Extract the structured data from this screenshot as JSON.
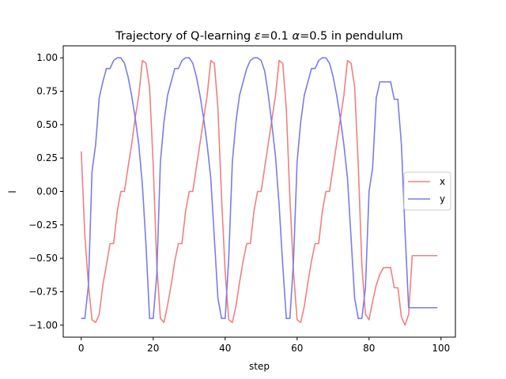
{
  "chart_data": {
    "type": "line",
    "title": "Trajectory of Q-learning ε=0.1 α=0.5 in pendulum",
    "title_parts": {
      "prefix": "Trajectory of Q-learning ",
      "eps_symbol": "ε",
      "eps_value": "=0.1 ",
      "alpha_symbol": "α",
      "alpha_value": "=0.5 in pendulum"
    },
    "xlabel": "step",
    "ylabel": "l",
    "xlim": [
      -5,
      104
    ],
    "ylim": [
      -1.09,
      1.09
    ],
    "xticks": [
      0,
      20,
      40,
      60,
      80,
      100
    ],
    "xtick_labels": [
      "0",
      "20",
      "40",
      "60",
      "80",
      "100"
    ],
    "yticks": [
      1.0,
      0.75,
      0.5,
      0.25,
      0.0,
      -0.25,
      -0.5,
      -0.75,
      -1.0
    ],
    "ytick_labels": [
      "1.00",
      "0.75",
      "0.50",
      "0.25",
      "0.00",
      "−0.25",
      "−0.50",
      "−0.75",
      "−1.00"
    ],
    "grid": false,
    "legend_position": "right",
    "x": [
      0,
      1,
      2,
      3,
      4,
      5,
      6,
      7,
      8,
      9,
      10,
      11,
      12,
      13,
      14,
      15,
      16,
      17,
      18,
      19,
      20,
      21,
      22,
      23,
      24,
      25,
      26,
      27,
      28,
      29,
      30,
      31,
      32,
      33,
      34,
      35,
      36,
      37,
      38,
      39,
      40,
      41,
      42,
      43,
      44,
      45,
      46,
      47,
      48,
      49,
      50,
      51,
      52,
      53,
      54,
      55,
      56,
      57,
      58,
      59,
      60,
      61,
      62,
      63,
      64,
      65,
      66,
      67,
      68,
      69,
      70,
      71,
      72,
      73,
      74,
      75,
      76,
      77,
      78,
      79,
      80,
      81,
      82,
      83,
      84,
      85,
      86,
      87,
      88,
      89,
      90,
      91,
      92,
      93,
      94,
      95,
      96,
      97,
      98,
      99
    ],
    "series": [
      {
        "name": "x",
        "color": "#f08080",
        "values": [
          0.3,
          -0.33,
          -0.7,
          -0.96,
          -0.98,
          -0.92,
          -0.7,
          -0.55,
          -0.39,
          -0.39,
          -0.15,
          0.0,
          0.0,
          0.18,
          0.35,
          0.55,
          0.72,
          0.98,
          0.96,
          0.78,
          0.2,
          -0.55,
          -0.95,
          -0.98,
          -0.85,
          -0.7,
          -0.52,
          -0.39,
          -0.39,
          -0.15,
          0.0,
          0.0,
          0.18,
          0.36,
          0.54,
          0.72,
          0.98,
          0.96,
          0.62,
          -0.05,
          -0.6,
          -0.96,
          -0.98,
          -0.86,
          -0.68,
          -0.52,
          -0.39,
          -0.39,
          -0.15,
          0.0,
          0.0,
          0.18,
          0.36,
          0.54,
          0.72,
          0.98,
          0.96,
          0.62,
          -0.05,
          -0.6,
          -0.96,
          -0.98,
          -0.86,
          -0.68,
          -0.52,
          -0.39,
          -0.39,
          -0.15,
          0.0,
          0.0,
          0.18,
          0.36,
          0.54,
          0.72,
          0.98,
          0.96,
          0.78,
          0.2,
          -0.55,
          -0.92,
          -0.96,
          -0.82,
          -0.7,
          -0.62,
          -0.57,
          -0.57,
          -0.57,
          -0.72,
          -0.72,
          -0.94,
          -1.0,
          -0.92,
          -0.48,
          -0.48,
          -0.48,
          -0.48,
          -0.48,
          -0.48,
          -0.48,
          -0.48
        ]
      },
      {
        "name": "y",
        "color": "#7b7bee",
        "values": [
          -0.95,
          -0.95,
          -0.7,
          0.15,
          0.35,
          0.7,
          0.82,
          0.92,
          0.92,
          0.98,
          1.0,
          1.0,
          0.96,
          0.86,
          0.72,
          0.55,
          0.35,
          0.05,
          -0.4,
          -0.95,
          -0.95,
          -0.62,
          0.22,
          0.52,
          0.72,
          0.82,
          0.92,
          0.92,
          0.98,
          1.0,
          1.0,
          0.96,
          0.86,
          0.72,
          0.55,
          0.35,
          0.1,
          -0.35,
          -0.8,
          -0.95,
          -0.95,
          -0.5,
          0.22,
          0.52,
          0.72,
          0.82,
          0.92,
          0.98,
          1.0,
          1.0,
          0.98,
          0.9,
          0.72,
          0.5,
          0.26,
          -0.1,
          -0.55,
          -0.95,
          -0.95,
          -0.52,
          0.22,
          0.52,
          0.72,
          0.82,
          0.92,
          0.92,
          0.98,
          1.0,
          1.0,
          0.96,
          0.86,
          0.72,
          0.55,
          0.35,
          0.1,
          -0.35,
          -0.8,
          -0.95,
          -0.95,
          -0.72,
          0.0,
          0.18,
          0.7,
          0.82,
          0.82,
          0.82,
          0.82,
          0.69,
          0.69,
          0.35,
          -0.3,
          -0.87,
          -0.87,
          -0.87,
          -0.87,
          -0.87,
          -0.87,
          -0.87,
          -0.87,
          -0.87
        ]
      }
    ]
  }
}
